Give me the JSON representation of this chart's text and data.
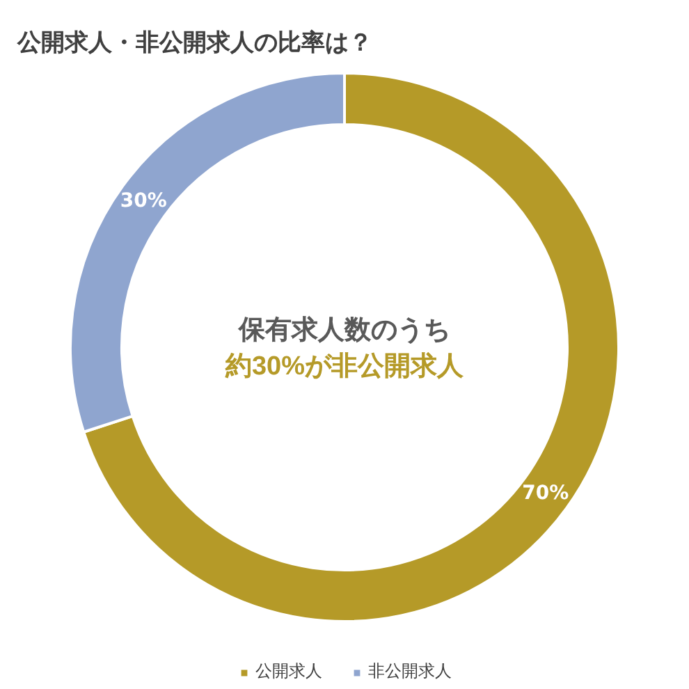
{
  "chart_data": {
    "type": "donut",
    "title": "公開求人・非公開求人の比率は？",
    "categories": [
      "公開求人",
      "非公開求人"
    ],
    "values": [
      70,
      30
    ],
    "colors": [
      "#b59a28",
      "#8fa5cf"
    ],
    "value_labels": [
      "70%",
      "30%"
    ],
    "annotations": [
      "保有求人数のうち",
      "約30%が非公開求人"
    ],
    "legend": "bottom"
  }
}
